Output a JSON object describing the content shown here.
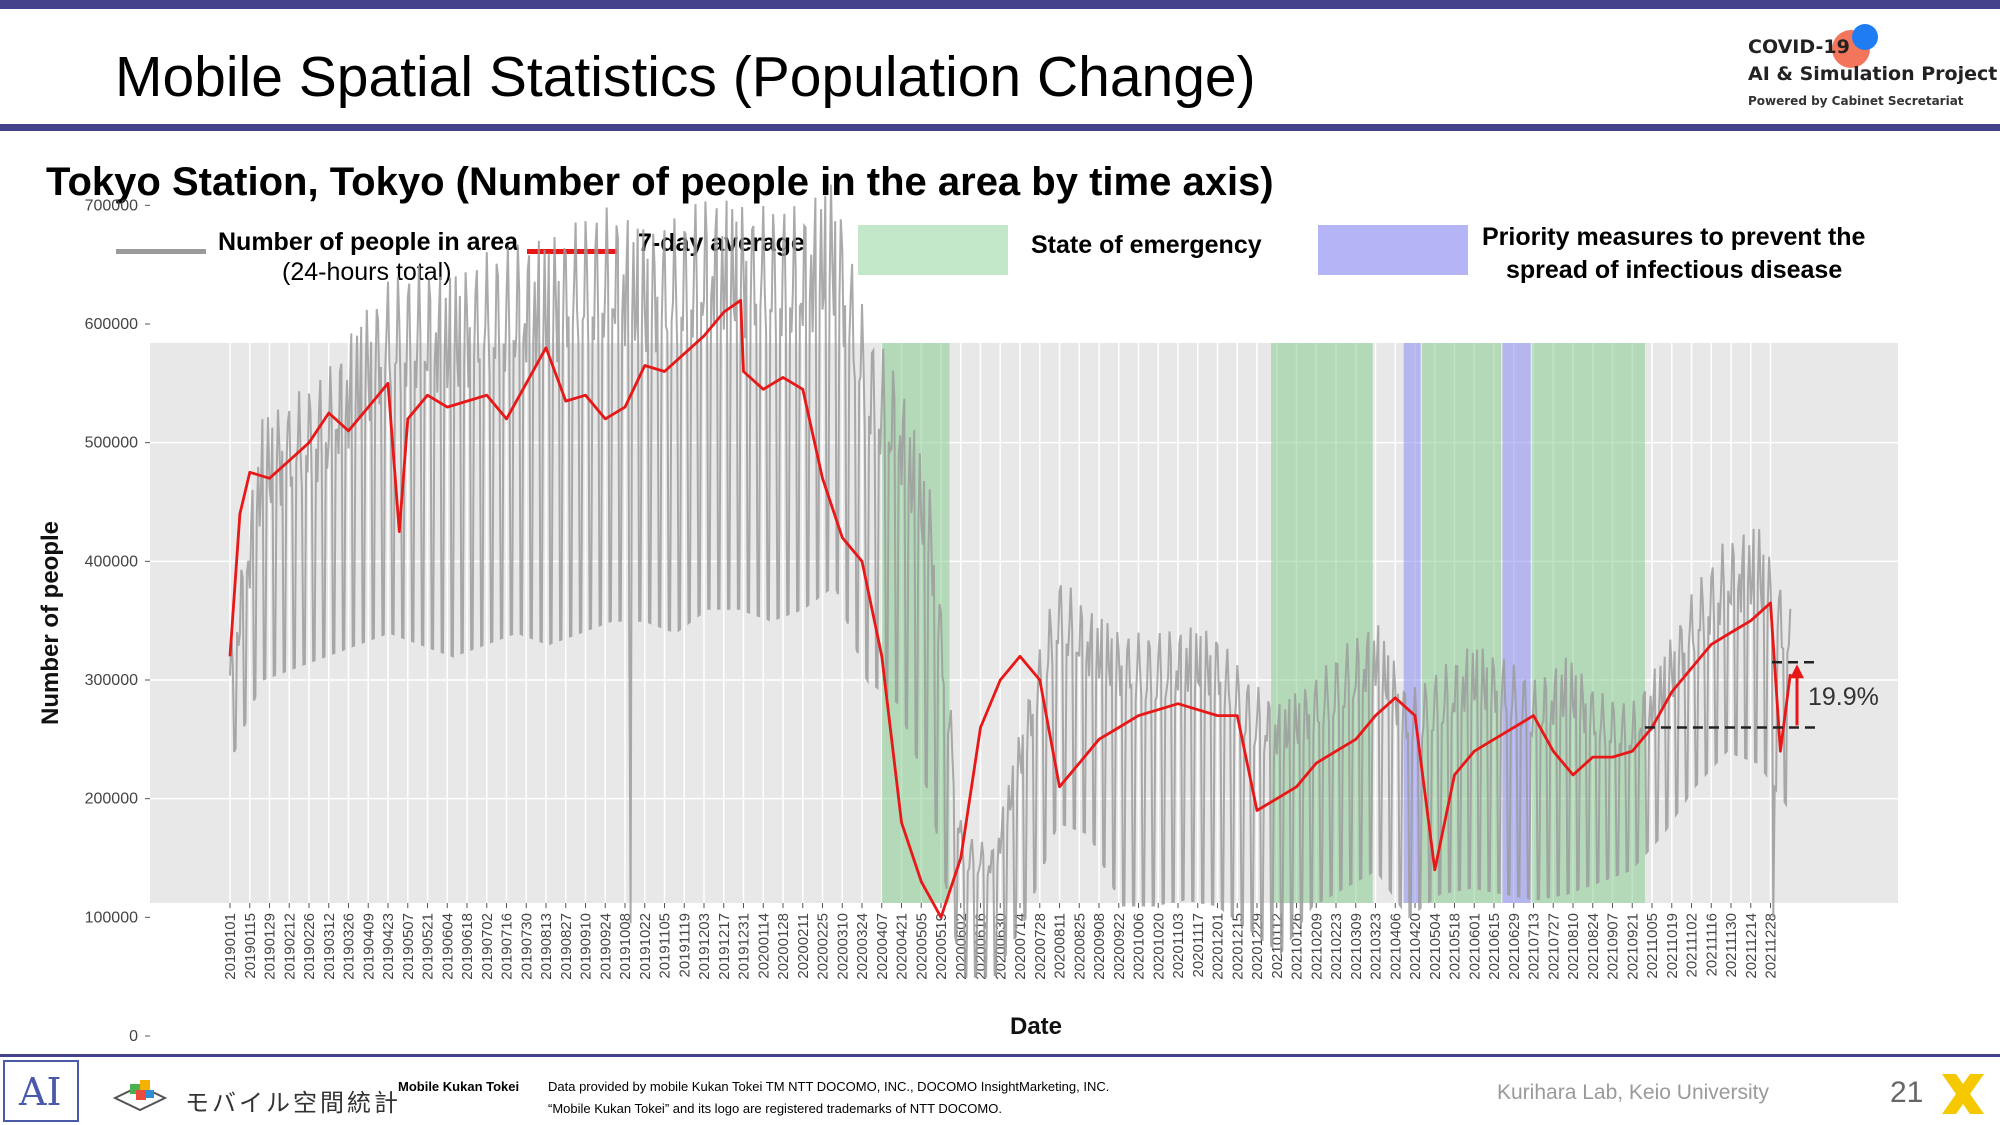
{
  "slide": {
    "title": "Mobile Spatial Statistics (Population Change)",
    "page_number": "21",
    "logo": {
      "line1": "COVID-19",
      "line2": "AI & Simulation Project",
      "line3": "Powered by Cabinet Secretariat"
    }
  },
  "chart_subtitle": "Tokyo Station, Tokyo (Number of people in the area by time axis)",
  "legend": {
    "people_line1": "Number of people in area",
    "people_line2": "(24-hours total)",
    "avg": "7-day average",
    "emergency": "State of emergency",
    "priority_line1": "Priority measures to prevent the",
    "priority_line2": "spread of infectious disease"
  },
  "footer": {
    "ai_logo": "AI",
    "jp_name": "モバイル空間統計",
    "mk_label": "Mobile Kukan Tokei",
    "data_line1": "Data provided by mobile Kukan Tokei TM NTT DOCOMO, INC., DOCOMO InsightMarketing, INC.",
    "data_line2": "“Mobile Kukan Tokei” and its logo are registered trademarks of NTT DOCOMO.",
    "lab": "Kurihara Lab, Keio University"
  },
  "colors": {
    "accent_band": "#44428a",
    "daily_series": "#9b9b9b",
    "avg_series": "#e81818",
    "emergency": "#7fc98a",
    "priority": "#8a8cf0",
    "plot_bg": "#e8e8e8"
  },
  "chart_data": {
    "type": "line",
    "xlabel": "Date",
    "ylabel": "Number of people",
    "ylim": [
      0,
      750000
    ],
    "y_ticks": [
      0,
      100000,
      200000,
      300000,
      400000,
      500000,
      600000,
      700000
    ],
    "grid": true,
    "x_tick_labels": [
      "20190101",
      "20190115",
      "20190129",
      "20190212",
      "20190226",
      "20190312",
      "20190326",
      "20190409",
      "20190423",
      "20190507",
      "20190521",
      "20190604",
      "20190618",
      "20190702",
      "20190716",
      "20190730",
      "20190813",
      "20190827",
      "20190910",
      "20190924",
      "20191008",
      "20191022",
      "20191105",
      "20191119",
      "20191203",
      "20191217",
      "20191231",
      "20200114",
      "20200128",
      "20200211",
      "20200225",
      "20200310",
      "20200324",
      "20200407",
      "20200421",
      "20200505",
      "20200519",
      "20200602",
      "20200616",
      "20200630",
      "20200714",
      "20200728",
      "20200811",
      "20200825",
      "20200908",
      "20200922",
      "20201006",
      "20201020",
      "20201103",
      "20201117",
      "20201201",
      "20201215",
      "20201229",
      "20210112",
      "20210126",
      "20210209",
      "20210223",
      "20210309",
      "20210323",
      "20210406",
      "20210420",
      "20210504",
      "20210518",
      "20210601",
      "20210615",
      "20210629",
      "20210713",
      "20210727",
      "20210810",
      "20210824",
      "20210907",
      "20210921",
      "20211005",
      "20211019",
      "20211102",
      "20211116",
      "20211130",
      "20211214",
      "20211228"
    ],
    "series": [
      {
        "name": "7-day average",
        "x": [
          "20190101",
          "20190108",
          "20190115",
          "20190129",
          "20190212",
          "20190226",
          "20190312",
          "20190326",
          "20190409",
          "20190423",
          "20190501",
          "20190507",
          "20190521",
          "20190604",
          "20190618",
          "20190702",
          "20190716",
          "20190730",
          "20190813",
          "20190827",
          "20190910",
          "20190924",
          "20191008",
          "20191022",
          "20191105",
          "20191119",
          "20191203",
          "20191217",
          "20191229",
          "20191231",
          "20200114",
          "20200128",
          "20200211",
          "20200225",
          "20200310",
          "20200324",
          "20200407",
          "20200421",
          "20200505",
          "20200519",
          "20200602",
          "20200616",
          "20200630",
          "20200714",
          "20200728",
          "20200811",
          "20200825",
          "20200908",
          "20200922",
          "20201006",
          "20201020",
          "20201103",
          "20201117",
          "20201201",
          "20201215",
          "20201229",
          "20210112",
          "20210126",
          "20210209",
          "20210223",
          "20210309",
          "20210323",
          "20210406",
          "20210420",
          "20210504",
          "20210518",
          "20210601",
          "20210615",
          "20210629",
          "20210713",
          "20210727",
          "20210810",
          "20210824",
          "20210907",
          "20210921",
          "20211005",
          "20211019",
          "20211102",
          "20211116",
          "20211130",
          "20211214",
          "20211228",
          "20220104",
          "20220111"
        ],
        "values": [
          320000,
          440000,
          475000,
          470000,
          485000,
          500000,
          525000,
          510000,
          530000,
          550000,
          425000,
          520000,
          540000,
          530000,
          535000,
          540000,
          520000,
          550000,
          580000,
          535000,
          540000,
          520000,
          530000,
          565000,
          560000,
          575000,
          590000,
          610000,
          620000,
          560000,
          545000,
          555000,
          545000,
          470000,
          420000,
          400000,
          320000,
          180000,
          130000,
          100000,
          150000,
          260000,
          300000,
          320000,
          300000,
          210000,
          230000,
          250000,
          260000,
          270000,
          275000,
          280000,
          275000,
          270000,
          270000,
          190000,
          200000,
          210000,
          230000,
          240000,
          250000,
          270000,
          285000,
          270000,
          140000,
          220000,
          240000,
          250000,
          260000,
          270000,
          240000,
          220000,
          235000,
          235000,
          240000,
          260000,
          290000,
          310000,
          330000,
          340000,
          350000,
          365000,
          240000,
          305000
        ]
      }
    ],
    "daily_series": {
      "name": "Number of people in area (24-hours total)",
      "x_range": [
        "20190101",
        "20220111"
      ],
      "weekday_level": [
        330000,
        520000,
        540000,
        560000,
        600000,
        640000,
        650000,
        640000,
        660000,
        670000,
        670000,
        690000,
        700000,
        680000,
        690000,
        710000,
        700000,
        700000,
        700000,
        720000,
        600000,
        560000,
        460000,
        170000,
        160000,
        280000,
        390000,
        360000,
        340000,
        340000,
        345000,
        340000,
        300000,
        280000,
        300000,
        330000,
        350000,
        290000,
        310000,
        330000,
        320000,
        300000,
        320000,
        290000,
        280000,
        320000,
        380000,
        420000,
        430000,
        360000
      ],
      "weekend_level": [
        230000,
        300000,
        310000,
        320000,
        330000,
        340000,
        330000,
        320000,
        330000,
        340000,
        330000,
        340000,
        350000,
        350000,
        340000,
        360000,
        360000,
        350000,
        360000,
        380000,
        300000,
        280000,
        200000,
        50000,
        50000,
        100000,
        180000,
        170000,
        110000,
        110000,
        115000,
        110000,
        90000,
        70000,
        110000,
        125000,
        140000,
        100000,
        120000,
        125000,
        120000,
        115000,
        120000,
        130000,
        140000,
        170000,
        210000,
        240000,
        230000,
        190000
      ],
      "outliers": [
        {
          "date": "20191012",
          "value": 95000
        },
        {
          "date": "20211230",
          "value": 100000
        }
      ]
    },
    "bands": [
      {
        "type": "State of emergency",
        "start": "20200407",
        "end": "20200525"
      },
      {
        "type": "State of emergency",
        "start": "20210108",
        "end": "20210321"
      },
      {
        "type": "Priority measures to prevent the spread of infectious disease",
        "start": "20210412",
        "end": "20210424"
      },
      {
        "type": "State of emergency",
        "start": "20210425",
        "end": "20210620"
      },
      {
        "type": "Priority measures to prevent the spread of infectious disease",
        "start": "20210621",
        "end": "20210711"
      },
      {
        "type": "State of emergency",
        "start": "20210712",
        "end": "20210930"
      }
    ],
    "annotation": {
      "text": "19.9%",
      "low_value": 260000,
      "high_value": 315000,
      "from_date": "20210930"
    }
  }
}
